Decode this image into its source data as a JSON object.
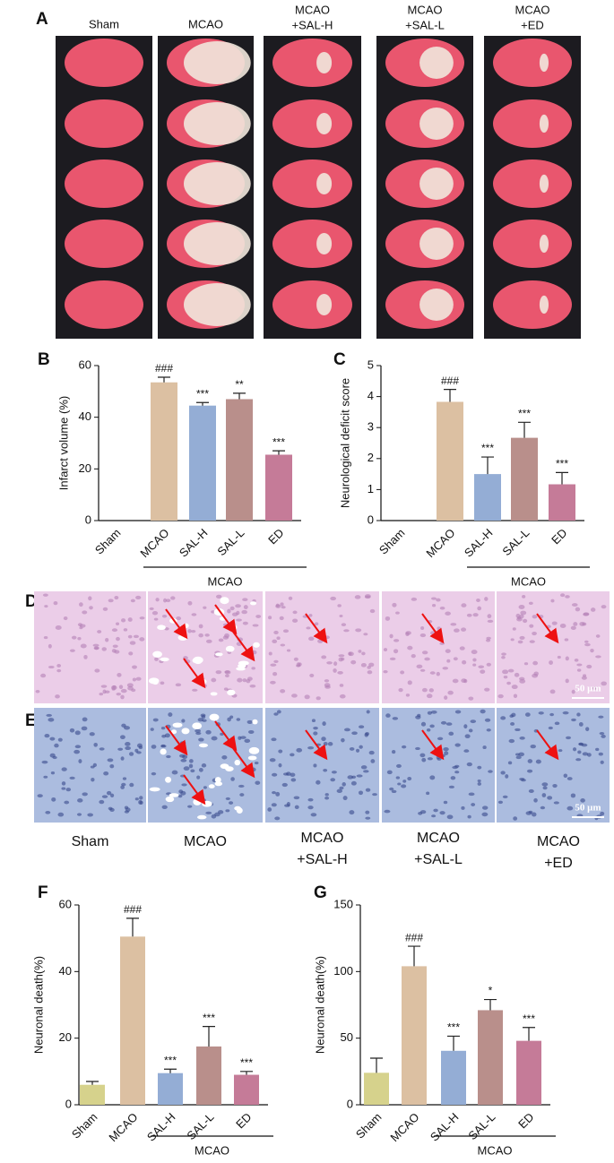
{
  "panel_labels": [
    "A",
    "B",
    "C",
    "D",
    "E",
    "F",
    "G"
  ],
  "panel_a": {
    "groups": [
      [
        "Sham"
      ],
      [
        "MCAO"
      ],
      [
        "MCAO",
        "+SAL-H"
      ],
      [
        "MCAO",
        "+SAL-L"
      ],
      [
        "MCAO",
        "+ED"
      ]
    ]
  },
  "panel_de": {
    "scale_bar": "50 μm",
    "groups": [
      [
        "Sham"
      ],
      [
        "MCAO"
      ],
      [
        "MCAO",
        "+SAL-H"
      ],
      [
        "MCAO",
        "+SAL-L"
      ],
      [
        "MCAO",
        "+ED"
      ]
    ]
  },
  "chart_data": [
    {
      "type": "bar",
      "ylabel": "Infarct volume (%)",
      "categories": [
        "Sham",
        "MCAO",
        "SAL-H",
        "SAL-L",
        "ED"
      ],
      "values": [
        0,
        53.5,
        44.5,
        47,
        25.5
      ],
      "errors": [
        0,
        2,
        1.2,
        2.3,
        1.5
      ],
      "annotations": [
        null,
        "###",
        "***",
        "**",
        "***"
      ],
      "colors": [
        "#d6d28c",
        "#dcc0a2",
        "#94add5",
        "#b98f8b",
        "#c57b98"
      ],
      "ylim": [
        0,
        60
      ],
      "yticks": [
        0,
        20,
        40,
        60
      ],
      "group_label": "MCAO",
      "group_span": [
        1,
        4
      ]
    },
    {
      "type": "bar",
      "ylabel": "Neurological deficit score",
      "categories": [
        "Sham",
        "MCAO",
        "SAL-H",
        "SAL-L",
        "ED"
      ],
      "values": [
        0,
        3.83,
        1.5,
        2.67,
        1.17
      ],
      "errors": [
        0,
        0.4,
        0.55,
        0.5,
        0.38
      ],
      "annotations": [
        null,
        "###",
        "***",
        "***",
        "***"
      ],
      "colors": [
        "#d6d28c",
        "#dcc0a2",
        "#94add5",
        "#b98f8b",
        "#c57b98"
      ],
      "ylim": [
        0,
        5
      ],
      "yticks": [
        0,
        1,
        2,
        3,
        4,
        5
      ],
      "group_label": "MCAO",
      "group_span": [
        2,
        4
      ]
    },
    {
      "type": "bar",
      "ylabel": "Neuronal death(%)",
      "categories": [
        "Sham",
        "MCAO",
        "SAL-H",
        "SAL-L",
        "ED"
      ],
      "values": [
        6,
        50.5,
        9.5,
        17.5,
        9
      ],
      "errors": [
        1,
        5.5,
        1.2,
        6,
        1
      ],
      "annotations": [
        null,
        "###",
        "***",
        "***",
        "***"
      ],
      "colors": [
        "#d6d28c",
        "#dcc0a2",
        "#94add5",
        "#b98f8b",
        "#c57b98"
      ],
      "ylim": [
        0,
        60
      ],
      "yticks": [
        0,
        20,
        40,
        60
      ],
      "group_label": "MCAO",
      "group_span": [
        2,
        4
      ]
    },
    {
      "type": "bar",
      "ylabel": "Neuronal death(%)",
      "categories": [
        "Sham",
        "MCAO",
        "SAL-H",
        "SAL-L",
        "ED"
      ],
      "values": [
        24,
        104,
        40.5,
        71,
        48
      ],
      "errors": [
        11,
        15,
        11,
        8,
        10
      ],
      "annotations": [
        null,
        "###",
        "***",
        "*",
        "***"
      ],
      "colors": [
        "#d6d28c",
        "#dcc0a2",
        "#94add5",
        "#b98f8b",
        "#c57b98"
      ],
      "ylim": [
        0,
        150
      ],
      "yticks": [
        0,
        50,
        100,
        150
      ],
      "group_label": "MCAO",
      "group_span": [
        2,
        4
      ]
    }
  ]
}
